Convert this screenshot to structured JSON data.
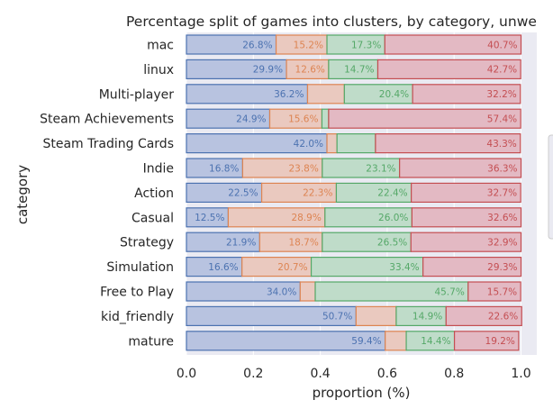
{
  "chart_data": {
    "type": "bar",
    "orientation": "horizontal",
    "stacked": true,
    "title": "Percentage split of games into clusters, by category, unwe",
    "xlabel": "proportion (%)",
    "ylabel": "category",
    "xlim": [
      0,
      1.05
    ],
    "xticks": [
      "0.0",
      "0.2",
      "0.4",
      "0.6",
      "0.8",
      "1.0"
    ],
    "grid": true,
    "legend": "right (cut off)",
    "categories": [
      "mac",
      "linux",
      "Multi-player",
      "Steam Achievements",
      "Steam Trading Cards",
      "Indie",
      "Action",
      "Casual",
      "Strategy",
      "Simulation",
      "Free to Play",
      "kid_friendly",
      "mature"
    ],
    "series": [
      {
        "color": "#4c72b0",
        "fill": "#b8c3e0",
        "values": [
          0.268,
          0.299,
          0.362,
          0.249,
          0.42,
          0.168,
          0.225,
          0.125,
          0.219,
          0.166,
          0.34,
          0.507,
          0.594
        ]
      },
      {
        "color": "#dd8452",
        "fill": "#eac9bf",
        "values": [
          0.152,
          0.126,
          0.11,
          0.156,
          0.03,
          0.238,
          0.223,
          0.289,
          0.187,
          0.207,
          0.045,
          0.12,
          0.063
        ]
      },
      {
        "color": "#55a868",
        "fill": "#bfdcc9",
        "values": [
          0.173,
          0.147,
          0.204,
          0.02,
          0.115,
          0.231,
          0.224,
          0.26,
          0.265,
          0.334,
          0.457,
          0.149,
          0.144
        ]
      },
      {
        "color": "#c44e52",
        "fill": "#e3b9c3",
        "values": [
          0.407,
          0.427,
          0.322,
          0.574,
          0.433,
          0.363,
          0.327,
          0.326,
          0.329,
          0.293,
          0.157,
          0.226,
          0.192
        ]
      }
    ],
    "data_labels": [
      [
        "26.8%",
        "15.2%",
        "17.3%",
        "40.7%"
      ],
      [
        "29.9%",
        "12.6%",
        "14.7%",
        "42.7%"
      ],
      [
        "36.2%",
        "",
        "20.4%",
        "32.2%"
      ],
      [
        "24.9%",
        "15.6%",
        "",
        "57.4%"
      ],
      [
        "42.0%",
        "",
        "",
        "43.3%"
      ],
      [
        "16.8%",
        "23.8%",
        "23.1%",
        "36.3%"
      ],
      [
        "22.5%",
        "22.3%",
        "22.4%",
        "32.7%"
      ],
      [
        "12.5%",
        "28.9%",
        "26.0%",
        "32.6%"
      ],
      [
        "21.9%",
        "18.7%",
        "26.5%",
        "32.9%"
      ],
      [
        "16.6%",
        "20.7%",
        "33.4%",
        "29.3%"
      ],
      [
        "34.0%",
        "",
        "45.7%",
        "15.7%"
      ],
      [
        "50.7%",
        "",
        "14.9%",
        "22.6%"
      ],
      [
        "59.4%",
        "",
        "14.4%",
        "19.2%"
      ]
    ]
  }
}
